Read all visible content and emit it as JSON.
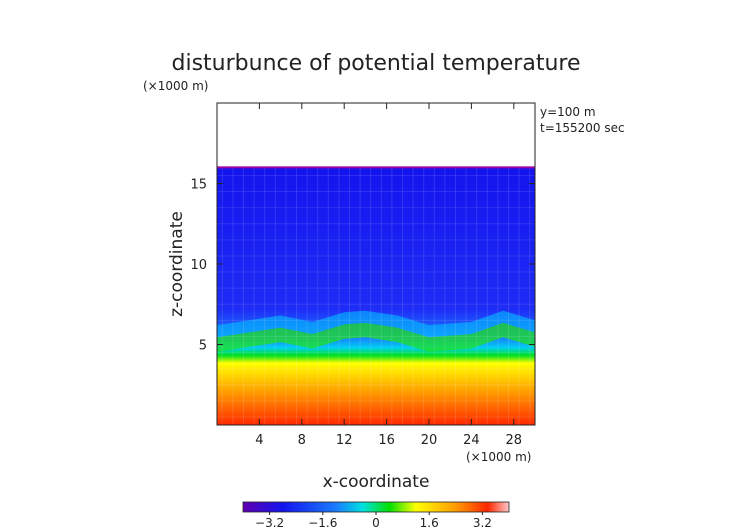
{
  "chart_data": {
    "type": "heatmap",
    "title": "disturbunce of potential temperature",
    "title_unit": "(×1000 m)",
    "annotations": [
      "y=100 m",
      "t=155200 sec"
    ],
    "xlabel": "x-coordinate",
    "xunit": "(×1000 m)",
    "ylabel": "z-coordinate",
    "xlim": [
      0,
      30
    ],
    "ylim": [
      0,
      20
    ],
    "xticks": [
      4,
      8,
      12,
      16,
      20,
      24,
      28
    ],
    "yticks": [
      5,
      10,
      15
    ],
    "colorbar": {
      "range": [
        -4,
        4
      ],
      "ticks": [
        "−3.2",
        "−1.6",
        "0",
        "1.6",
        "3.2"
      ],
      "tick_values": [
        -3.2,
        -1.6,
        0,
        1.6,
        3.2
      ]
    },
    "data_top_z": 16,
    "green_band_z": [
      [
        0,
        5.0
      ],
      [
        3,
        5.3
      ],
      [
        6,
        5.6
      ],
      [
        9,
        5.2
      ],
      [
        12,
        5.8
      ],
      [
        14,
        5.9
      ],
      [
        17,
        5.6
      ],
      [
        20,
        5.0
      ],
      [
        24,
        5.2
      ],
      [
        27,
        5.9
      ],
      [
        30,
        5.3
      ]
    ],
    "colors": {
      "violet": "#5a00b4",
      "blue": "#1616f0",
      "cyan": "#00c8ff",
      "green": "#00e000",
      "yellow": "#ffff00",
      "orange": "#ff9a00",
      "red": "#ff2a00",
      "pink": "#ffb4b4"
    }
  }
}
